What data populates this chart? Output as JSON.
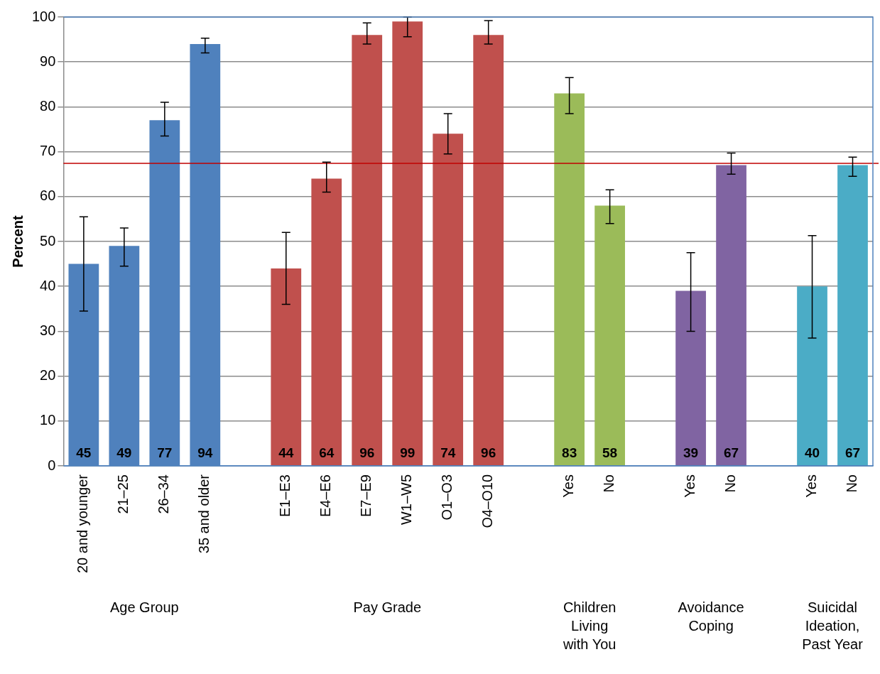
{
  "chart_data": {
    "type": "bar",
    "ylabel": "Percent",
    "categories": [
      "20 and younger",
      "21–25",
      "26–34",
      "35 and older",
      null,
      "E1–E3",
      "E4–E6",
      "E7–E9",
      "W1–W5",
      "O1–O3",
      "O4–O10",
      null,
      "Yes",
      "No",
      null,
      "Yes",
      "No",
      null,
      "Yes",
      "No"
    ],
    "values": [
      45,
      49,
      77,
      94,
      null,
      44,
      64,
      96,
      99,
      74,
      96,
      null,
      83,
      58,
      null,
      39,
      67,
      null,
      40,
      67
    ],
    "colors": [
      "#4f81bd",
      "#4f81bd",
      "#4f81bd",
      "#4f81bd",
      null,
      "#c0504d",
      "#c0504d",
      "#c0504d",
      "#c0504d",
      "#c0504d",
      "#c0504d",
      null,
      "#9bbb59",
      "#9bbb59",
      null,
      "#8064a2",
      "#8064a2",
      null,
      "#4bacc6",
      "#4bacc6"
    ],
    "errors": [
      [
        34.5,
        55.5
      ],
      [
        44.5,
        53
      ],
      [
        73.5,
        81
      ],
      [
        92,
        95.3
      ],
      null,
      [
        36,
        52
      ],
      [
        61,
        67.7
      ],
      [
        94,
        98.7
      ],
      [
        95.6,
        100
      ],
      [
        69.5,
        78.5
      ],
      [
        94,
        99.2
      ],
      null,
      [
        78.5,
        86.5
      ],
      [
        54,
        61.5
      ],
      null,
      [
        30,
        47.5
      ],
      [
        65,
        69.7
      ],
      null,
      [
        28.5,
        51.3
      ],
      [
        64.5,
        68.8
      ]
    ],
    "ylim": [
      0,
      100
    ],
    "yticks": [
      0,
      10,
      20,
      30,
      40,
      50,
      60,
      70,
      80,
      90,
      100
    ],
    "grid": "y",
    "legend": false,
    "data_labels": true,
    "ref_lines": [
      {
        "axis": "y",
        "value": 67.4,
        "color": "#c00000"
      }
    ],
    "annotations": [
      "Age Group",
      "Pay Grade",
      "Children Living with You",
      "Avoidance Coping",
      "Suicidal Ideation, Past Year"
    ]
  }
}
